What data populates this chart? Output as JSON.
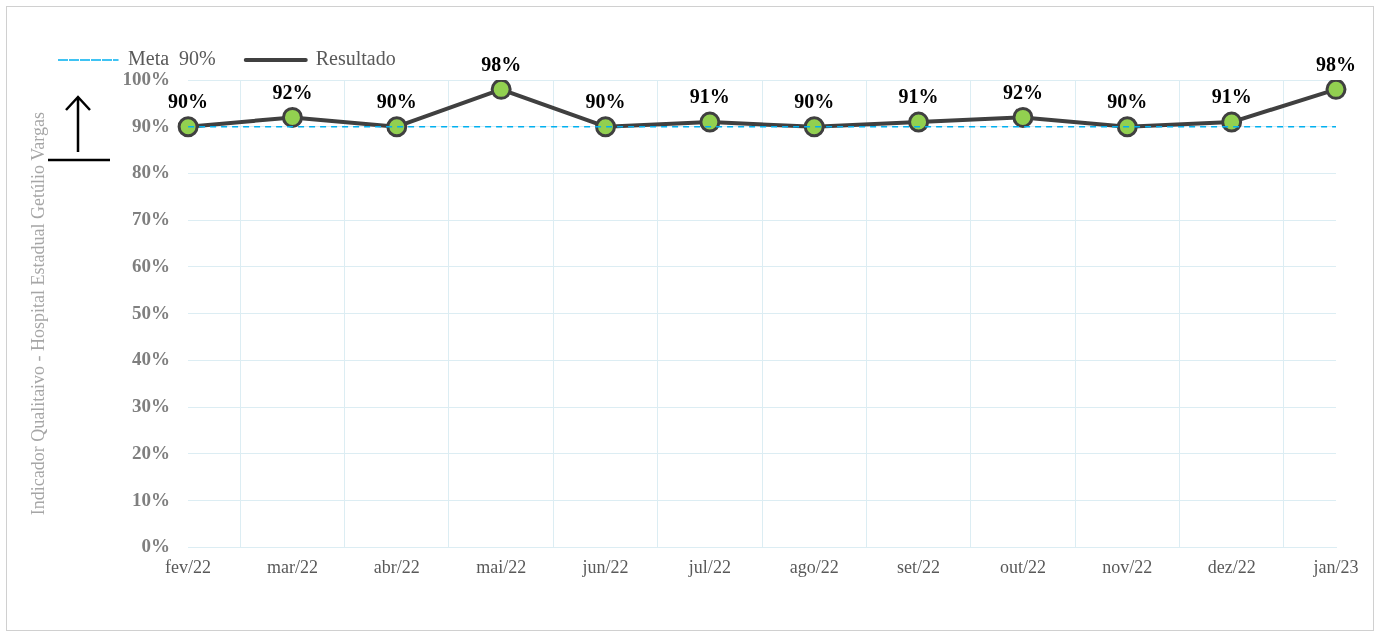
{
  "chart_data": {
    "type": "line",
    "ylabel": "Indicador Qualitaivo - Hospital Estadual Getúlio Vargas",
    "categories": [
      "fev/22",
      "mar/22",
      "abr/22",
      "mai/22",
      "jun/22",
      "jul/22",
      "ago/22",
      "set/22",
      "out/22",
      "nov/22",
      "dez/22",
      "jan/23"
    ],
    "series": [
      {
        "name": "Meta  90%",
        "color": "#00b0f0",
        "line_style": "dashed",
        "marker": "none",
        "values": [
          90,
          90,
          90,
          90,
          90,
          90,
          90,
          90,
          90,
          90,
          90,
          90
        ]
      },
      {
        "name": "Resultado",
        "color": "#404040",
        "line_style": "solid",
        "marker": "circle",
        "values": [
          90,
          92,
          90,
          98,
          90,
          91,
          90,
          91,
          92,
          90,
          91,
          98
        ],
        "value_labels": [
          "90%",
          "92%",
          "90%",
          "98%",
          "90%",
          "91%",
          "90%",
          "91%",
          "92%",
          "90%",
          "91%",
          "98%"
        ]
      }
    ],
    "ylim": [
      0,
      100
    ],
    "yticks": [
      {
        "value": 0,
        "label": "0%"
      },
      {
        "value": 10,
        "label": "10%"
      },
      {
        "value": 20,
        "label": "20%"
      },
      {
        "value": 30,
        "label": "30%"
      },
      {
        "value": 40,
        "label": "40%"
      },
      {
        "value": 50,
        "label": "50%"
      },
      {
        "value": 60,
        "label": "60%"
      },
      {
        "value": 70,
        "label": "70%"
      },
      {
        "value": 80,
        "label": "80%"
      },
      {
        "value": 90,
        "label": "90%"
      },
      {
        "value": 100,
        "label": "100%"
      }
    ],
    "grid": true,
    "legend": "top left"
  }
}
